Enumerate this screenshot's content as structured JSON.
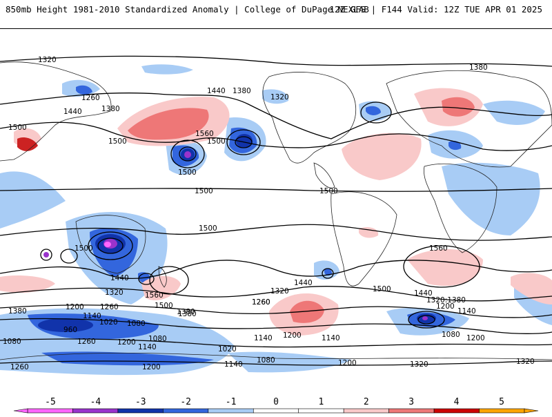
{
  "header": {
    "left": "850mb Height 1981-2010 Standardized Anomaly | College of DuPage NEXLAB",
    "right": "12Z GFS | F144 Valid: 12Z TUE APR 01 2025"
  },
  "colors": {
    "neg5": "#ff66ff",
    "neg4": "#9933cc",
    "neg3": "#1133aa",
    "neg2": "#3366dd",
    "neg1": "#a8ccf5",
    "neutral": "#ffffff",
    "pos1": "#f9c9c9",
    "pos2": "#ee7777",
    "pos3": "#cc2222",
    "pos4": "#cc0000",
    "pos5": "#ffa500",
    "coast": "#222222",
    "contour": "#000000"
  },
  "colorbar": {
    "ticks": [
      "-5",
      "-4",
      "-3",
      "-2",
      "-1",
      "0",
      "1",
      "2",
      "3",
      "4",
      "5"
    ],
    "segments": [
      "#ff66ff",
      "#9933cc",
      "#1133aa",
      "#3366dd",
      "#a8ccf5",
      "#ffffff",
      "#ffffff",
      "#f9c9c9",
      "#ee7777",
      "#cc0000",
      "#ffa500"
    ]
  },
  "contour_labels": [
    "1320",
    "1380",
    "1440",
    "1260",
    "1500",
    "1560",
    "1380",
    "1380",
    "1320",
    "1500",
    "1440",
    "1500",
    "1500",
    "1500",
    "1500",
    "1500",
    "1560",
    "1500",
    "1440",
    "1320",
    "1260",
    "1200",
    "1260",
    "1140",
    "1020",
    "960",
    "1080",
    "1200",
    "1080",
    "1140",
    "1260",
    "1380",
    "1440",
    "1320",
    "1260",
    "1200",
    "1140",
    "1080",
    "1020",
    "1140",
    "1080",
    "1200",
    "1260",
    "1200",
    "1140",
    "1320",
    "1380",
    "1560",
    "1500",
    "1500",
    "1440",
    "1320:1380",
    "1200",
    "1140",
    "1080",
    "1200",
    "1320",
    "1380"
  ]
}
